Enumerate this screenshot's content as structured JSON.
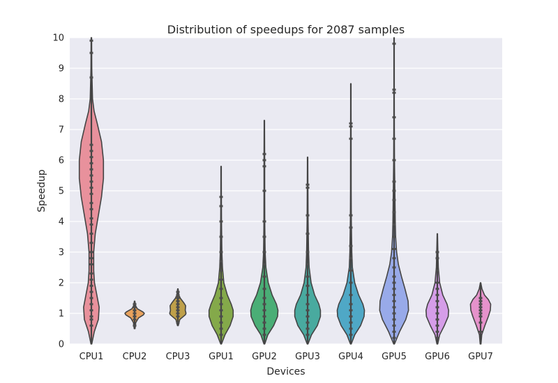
{
  "chart_data": {
    "type": "violin",
    "title": "Distribution of speedups for 2087 samples",
    "xlabel": "Devices",
    "ylabel": "Speedup",
    "ylim": [
      0,
      10
    ],
    "yticks": [
      0,
      1,
      2,
      3,
      4,
      5,
      6,
      7,
      8,
      9,
      10
    ],
    "grid": true,
    "categories": [
      "CPU1",
      "CPU2",
      "CPU3",
      "GPU1",
      "GPU2",
      "GPU3",
      "GPU4",
      "GPU5",
      "GPU6",
      "GPU7"
    ],
    "series": [
      {
        "label": "CPU1",
        "color": "#e8919c",
        "min": 0.0,
        "max": 10.0,
        "profile": [
          [
            0.0,
            0.02
          ],
          [
            0.4,
            0.15
          ],
          [
            0.8,
            0.36
          ],
          [
            1.2,
            0.4
          ],
          [
            1.6,
            0.28
          ],
          [
            2.0,
            0.16
          ],
          [
            2.4,
            0.12
          ],
          [
            3.0,
            0.12
          ],
          [
            3.6,
            0.2
          ],
          [
            4.2,
            0.36
          ],
          [
            4.8,
            0.52
          ],
          [
            5.4,
            0.62
          ],
          [
            6.0,
            0.62
          ],
          [
            6.6,
            0.52
          ],
          [
            7.2,
            0.3
          ],
          [
            7.6,
            0.14
          ],
          [
            8.0,
            0.06
          ],
          [
            9.0,
            0.02
          ],
          [
            10.0,
            0.01
          ]
        ]
      },
      {
        "label": "CPU2",
        "color": "#e8a25d",
        "min": 0.5,
        "max": 1.4,
        "profile": [
          [
            0.5,
            0.02
          ],
          [
            0.7,
            0.06
          ],
          [
            0.85,
            0.2
          ],
          [
            0.95,
            0.45
          ],
          [
            1.0,
            0.5
          ],
          [
            1.05,
            0.42
          ],
          [
            1.15,
            0.14
          ],
          [
            1.25,
            0.05
          ],
          [
            1.4,
            0.01
          ]
        ]
      },
      {
        "label": "CPU3",
        "color": "#bfa04a",
        "min": 0.6,
        "max": 1.8,
        "profile": [
          [
            0.6,
            0.02
          ],
          [
            0.8,
            0.1
          ],
          [
            0.95,
            0.38
          ],
          [
            1.0,
            0.42
          ],
          [
            1.1,
            0.38
          ],
          [
            1.25,
            0.4
          ],
          [
            1.35,
            0.3
          ],
          [
            1.5,
            0.12
          ],
          [
            1.6,
            0.05
          ],
          [
            1.8,
            0.01
          ]
        ]
      },
      {
        "label": "GPU1",
        "color": "#84a94a",
        "min": 0.0,
        "max": 5.8,
        "profile": [
          [
            0.0,
            0.02
          ],
          [
            0.3,
            0.2
          ],
          [
            0.6,
            0.46
          ],
          [
            0.9,
            0.62
          ],
          [
            1.1,
            0.62
          ],
          [
            1.3,
            0.52
          ],
          [
            1.6,
            0.32
          ],
          [
            2.0,
            0.14
          ],
          [
            2.5,
            0.07
          ],
          [
            3.0,
            0.04
          ],
          [
            4.0,
            0.02
          ],
          [
            5.0,
            0.01
          ],
          [
            5.8,
            0.005
          ]
        ]
      },
      {
        "label": "GPU2",
        "color": "#4aae76",
        "min": 0.0,
        "max": 7.3,
        "profile": [
          [
            0.0,
            0.02
          ],
          [
            0.3,
            0.18
          ],
          [
            0.6,
            0.48
          ],
          [
            0.9,
            0.68
          ],
          [
            1.1,
            0.7
          ],
          [
            1.3,
            0.62
          ],
          [
            1.6,
            0.4
          ],
          [
            2.0,
            0.2
          ],
          [
            2.5,
            0.08
          ],
          [
            3.0,
            0.04
          ],
          [
            4.0,
            0.02
          ],
          [
            5.0,
            0.015
          ],
          [
            6.0,
            0.015
          ],
          [
            7.3,
            0.005
          ]
        ]
      },
      {
        "label": "GPU3",
        "color": "#49aa9f",
        "min": 0.0,
        "max": 6.1,
        "profile": [
          [
            0.0,
            0.02
          ],
          [
            0.3,
            0.2
          ],
          [
            0.6,
            0.5
          ],
          [
            0.9,
            0.66
          ],
          [
            1.1,
            0.66
          ],
          [
            1.3,
            0.58
          ],
          [
            1.6,
            0.36
          ],
          [
            2.0,
            0.18
          ],
          [
            2.5,
            0.08
          ],
          [
            3.0,
            0.05
          ],
          [
            4.0,
            0.025
          ],
          [
            5.0,
            0.015
          ],
          [
            6.1,
            0.005
          ]
        ]
      },
      {
        "label": "GPU4",
        "color": "#4fa8c6",
        "min": 0.0,
        "max": 8.5,
        "profile": [
          [
            0.0,
            0.02
          ],
          [
            0.3,
            0.2
          ],
          [
            0.6,
            0.5
          ],
          [
            0.9,
            0.68
          ],
          [
            1.1,
            0.7
          ],
          [
            1.3,
            0.62
          ],
          [
            1.6,
            0.4
          ],
          [
            2.0,
            0.2
          ],
          [
            2.5,
            0.08
          ],
          [
            3.0,
            0.05
          ],
          [
            4.0,
            0.025
          ],
          [
            5.0,
            0.015
          ],
          [
            7.0,
            0.01
          ],
          [
            8.5,
            0.004
          ]
        ]
      },
      {
        "label": "GPU5",
        "color": "#98aae9",
        "min": 0.0,
        "max": 10.0,
        "profile": [
          [
            0.0,
            0.02
          ],
          [
            0.4,
            0.28
          ],
          [
            0.8,
            0.6
          ],
          [
            1.1,
            0.74
          ],
          [
            1.4,
            0.72
          ],
          [
            1.8,
            0.56
          ],
          [
            2.2,
            0.38
          ],
          [
            2.6,
            0.22
          ],
          [
            3.0,
            0.13
          ],
          [
            3.5,
            0.08
          ],
          [
            4.0,
            0.06
          ],
          [
            5.0,
            0.04
          ],
          [
            6.0,
            0.02
          ],
          [
            7.0,
            0.012
          ],
          [
            8.0,
            0.008
          ],
          [
            10.0,
            0.004
          ]
        ]
      },
      {
        "label": "GPU6",
        "color": "#d59de8",
        "min": 0.0,
        "max": 3.6,
        "profile": [
          [
            0.0,
            0.02
          ],
          [
            0.3,
            0.12
          ],
          [
            0.6,
            0.36
          ],
          [
            0.9,
            0.56
          ],
          [
            1.1,
            0.58
          ],
          [
            1.3,
            0.5
          ],
          [
            1.6,
            0.28
          ],
          [
            2.0,
            0.12
          ],
          [
            2.5,
            0.05
          ],
          [
            3.0,
            0.03
          ],
          [
            3.6,
            0.005
          ]
        ]
      },
      {
        "label": "GPU7",
        "color": "#e692cb",
        "min": 0.0,
        "max": 2.0,
        "profile": [
          [
            0.0,
            0.02
          ],
          [
            0.3,
            0.06
          ],
          [
            0.6,
            0.22
          ],
          [
            0.9,
            0.4
          ],
          [
            1.1,
            0.5
          ],
          [
            1.3,
            0.52
          ],
          [
            1.45,
            0.4
          ],
          [
            1.6,
            0.2
          ],
          [
            1.8,
            0.07
          ],
          [
            2.0,
            0.01
          ]
        ]
      }
    ],
    "points": [
      {
        "label": "CPU1",
        "values": [
          0.6,
          0.8,
          0.9,
          1.1,
          1.3,
          1.5,
          1.7,
          1.9,
          2.1,
          2.3,
          2.6,
          2.8,
          3.0,
          3.3,
          3.6,
          3.9,
          4.1,
          4.4,
          4.6,
          4.9,
          5.1,
          5.3,
          5.5,
          5.7,
          5.9,
          6.1,
          6.3,
          6.5,
          8.7,
          9.5,
          9.9
        ]
      },
      {
        "label": "CPU2",
        "values": [
          0.6,
          0.8,
          0.9,
          1.0,
          1.1,
          1.2,
          1.3
        ]
      },
      {
        "label": "CPU3",
        "values": [
          0.7,
          0.9,
          1.0,
          1.1,
          1.2,
          1.3,
          1.4,
          1.5,
          1.6,
          1.7
        ]
      },
      {
        "label": "GPU1",
        "values": [
          0.3,
          0.5,
          0.7,
          0.9,
          1.1,
          1.3,
          1.5,
          1.8,
          2.1,
          2.4,
          2.7,
          3.0,
          3.5,
          4.0,
          4.5,
          4.8
        ]
      },
      {
        "label": "GPU2",
        "values": [
          0.3,
          0.5,
          0.7,
          0.9,
          1.1,
          1.3,
          1.5,
          1.8,
          2.2,
          2.6,
          3.0,
          3.5,
          4.0,
          5.0,
          5.8,
          6.0,
          6.2
        ]
      },
      {
        "label": "GPU3",
        "values": [
          0.3,
          0.5,
          0.7,
          0.9,
          1.1,
          1.3,
          1.6,
          1.9,
          2.2,
          2.6,
          3.0,
          3.6,
          4.2,
          5.1,
          5.2
        ]
      },
      {
        "label": "GPU4",
        "values": [
          0.3,
          0.5,
          0.7,
          0.9,
          1.1,
          1.3,
          1.6,
          2.0,
          2.4,
          2.8,
          3.2,
          3.8,
          4.2,
          6.7,
          7.1,
          7.2
        ]
      },
      {
        "label": "GPU5",
        "values": [
          0.2,
          0.4,
          0.6,
          0.8,
          1.0,
          1.2,
          1.4,
          1.6,
          1.8,
          2.0,
          2.2,
          2.5,
          2.8,
          3.1,
          3.5,
          3.9,
          4.3,
          4.7,
          5.0,
          5.3,
          6.0,
          6.7,
          7.4,
          8.2,
          8.3,
          9.8
        ]
      },
      {
        "label": "GPU6",
        "values": [
          0.2,
          0.4,
          0.6,
          0.8,
          1.0,
          1.2,
          1.4,
          1.6,
          1.8,
          2.0,
          2.4,
          2.8,
          3.0
        ]
      },
      {
        "label": "GPU7",
        "values": [
          0.4,
          0.7,
          0.9,
          1.0,
          1.1,
          1.2,
          1.3,
          1.4,
          1.5
        ]
      }
    ]
  }
}
